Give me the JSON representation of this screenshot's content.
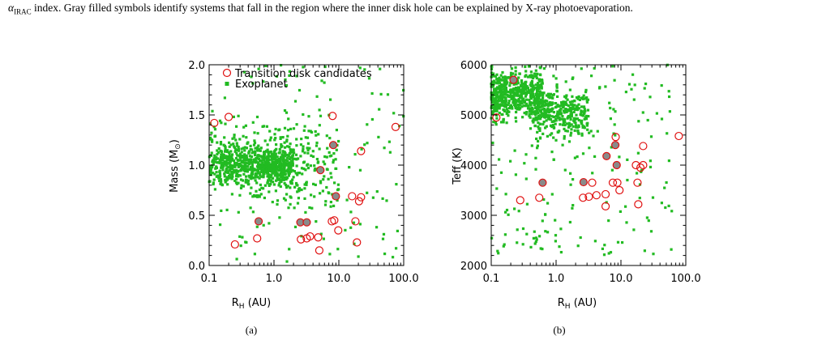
{
  "caption": {
    "prefix": "α",
    "sub": "IRAC",
    "text": " index. Gray filled symbols identify systems that fall in the region where the inner disk hole can be explained by X-ray photoevaporation."
  },
  "colors": {
    "exoplanet": "#22bb22",
    "candidate": "#e01010",
    "candidate_fill": "#8a8a8a"
  },
  "chart_data": [
    {
      "type": "scatter",
      "panel_label": "(a)",
      "xlabel": "R_H (AU)",
      "ylabel": "Mass (M⊙)",
      "xscale": "log",
      "xlim": [
        0.1,
        100.0
      ],
      "ylim": [
        0.0,
        2.0
      ],
      "xticks": [
        "0.1",
        "1.0",
        "10.0",
        "100.0"
      ],
      "yticks": [
        "0.0",
        "0.5",
        "1.0",
        "1.5",
        "2.0"
      ],
      "legend": {
        "placement": "top-left",
        "entries": [
          "Transition disk candidates",
          "Exoplanet"
        ]
      },
      "series": [
        {
          "name": "Transition disk candidates",
          "marker": "open-circle",
          "points": [
            [
              0.12,
              1.42
            ],
            [
              0.2,
              1.48
            ],
            [
              0.25,
              0.21
            ],
            [
              0.55,
              0.27
            ],
            [
              2.6,
              0.26
            ],
            [
              3.2,
              0.27
            ],
            [
              3.6,
              0.29
            ],
            [
              4.8,
              0.28
            ],
            [
              5.0,
              0.15
            ],
            [
              7.8,
              0.44
            ],
            [
              8.5,
              0.45
            ],
            [
              9.8,
              0.35
            ],
            [
              8.0,
              1.49
            ],
            [
              16.0,
              0.69
            ],
            [
              18.0,
              0.44
            ],
            [
              19.0,
              0.23
            ],
            [
              20.5,
              0.64
            ],
            [
              22.0,
              0.68
            ],
            [
              22.0,
              1.14
            ],
            [
              75.0,
              1.38
            ]
          ]
        },
        {
          "name": "Transition disk candidates (X-ray photoevaporation region)",
          "marker": "gray-filled-circle",
          "points": [
            [
              0.58,
              0.44
            ],
            [
              2.55,
              0.43
            ],
            [
              3.2,
              0.43
            ],
            [
              5.2,
              0.95
            ],
            [
              8.2,
              1.2
            ],
            [
              9.0,
              0.69
            ]
          ]
        }
      ]
    },
    {
      "type": "scatter",
      "panel_label": "(b)",
      "xlabel": "R_H (AU)",
      "ylabel": "Teff (K)",
      "xscale": "log",
      "xlim": [
        0.1,
        100.0
      ],
      "ylim": [
        2000,
        6000
      ],
      "xticks": [
        "0.1",
        "1.0",
        "10.0",
        "100.0"
      ],
      "yticks": [
        "2000",
        "3000",
        "4000",
        "5000",
        "6000"
      ],
      "series": [
        {
          "name": "Transition disk candidates",
          "marker": "open-circle",
          "points": [
            [
              0.12,
              4950
            ],
            [
              0.28,
              3300
            ],
            [
              0.55,
              3350
            ],
            [
              2.6,
              3350
            ],
            [
              3.2,
              3370
            ],
            [
              3.6,
              3650
            ],
            [
              4.2,
              3400
            ],
            [
              5.8,
              3420
            ],
            [
              5.8,
              3180
            ],
            [
              7.5,
              3650
            ],
            [
              8.3,
              4560
            ],
            [
              8.8,
              3650
            ],
            [
              9.5,
              3500
            ],
            [
              17.0,
              4000
            ],
            [
              18.0,
              3650
            ],
            [
              18.5,
              3220
            ],
            [
              20.0,
              3950
            ],
            [
              22.0,
              4000
            ],
            [
              22.0,
              4380
            ],
            [
              78.0,
              4580
            ]
          ]
        },
        {
          "name": "Transition disk candidates (X-ray photoevaporation region)",
          "marker": "gray-filled-circle",
          "points": [
            [
              0.22,
              5700
            ],
            [
              0.62,
              3650
            ],
            [
              2.65,
              3660
            ],
            [
              6.0,
              4180
            ],
            [
              8.2,
              4400
            ],
            [
              8.6,
              4000
            ]
          ]
        }
      ]
    }
  ]
}
